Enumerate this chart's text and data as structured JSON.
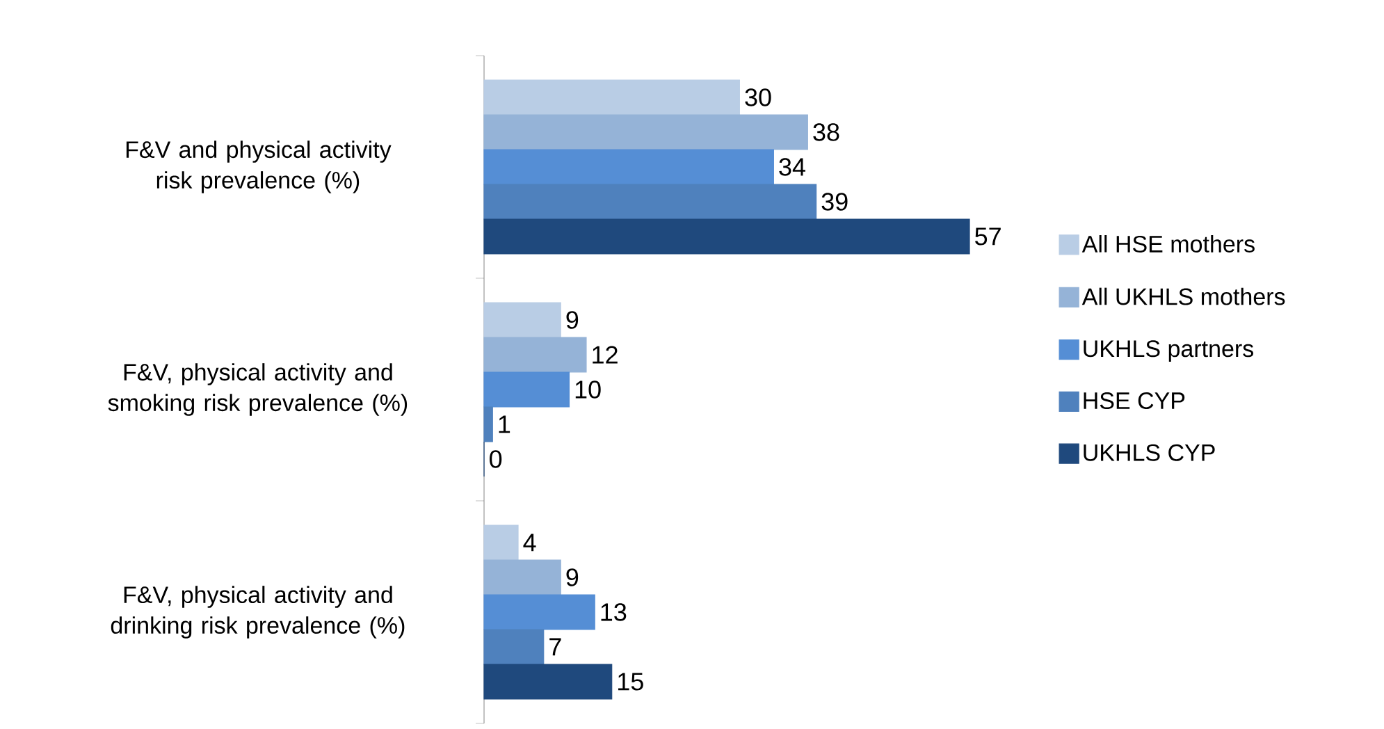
{
  "chart_data": {
    "type": "bar",
    "orientation": "horizontal",
    "categories": [
      "F&V and physical activity risk prevalence (%)",
      "F&V,  physical activity and smoking risk prevalence (%)",
      "F&V, physical activity and drinking risk prevalence (%)"
    ],
    "series": [
      {
        "name": "All HSE mothers",
        "color": "#b9cde5",
        "values": [
          30,
          9,
          4
        ]
      },
      {
        "name": "All UKHLS mothers",
        "color": "#95b3d7",
        "values": [
          38,
          12,
          9
        ]
      },
      {
        "name": "UKHLS partners",
        "color": "#558ed5",
        "values": [
          34,
          10,
          13
        ]
      },
      {
        "name": "HSE CYP",
        "color": "#4f81bd",
        "values": [
          39,
          1,
          7
        ]
      },
      {
        "name": "UKHLS CYP",
        "color": "#1f497d",
        "values": [
          57,
          0,
          15
        ]
      }
    ],
    "data_labels": true,
    "legend": "right"
  }
}
